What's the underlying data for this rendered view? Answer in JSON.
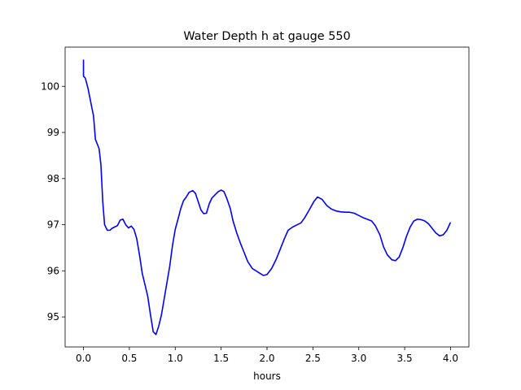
{
  "chart_data": {
    "type": "line",
    "title": "Water Depth h at gauge 550",
    "xlabel": "hours",
    "ylabel": "",
    "xlim": [
      -0.2,
      4.2
    ],
    "ylim": [
      94.35,
      100.85
    ],
    "xticks": [
      0.0,
      0.5,
      1.0,
      1.5,
      2.0,
      2.5,
      3.0,
      3.5,
      4.0
    ],
    "xtick_labels": [
      "0.0",
      "0.5",
      "1.0",
      "1.5",
      "2.0",
      "2.5",
      "3.0",
      "3.5",
      "4.0"
    ],
    "yticks": [
      95,
      96,
      97,
      98,
      99,
      100
    ],
    "ytick_labels": [
      "95",
      "96",
      "97",
      "98",
      "99",
      "100"
    ],
    "grid": false,
    "series": [
      {
        "color": "#0000ff",
        "x": [
          0.0,
          0.0,
          0.02,
          0.05,
          0.08,
          0.11,
          0.13,
          0.17,
          0.19,
          0.21,
          0.23,
          0.26,
          0.29,
          0.31,
          0.34,
          0.37,
          0.4,
          0.43,
          0.46,
          0.49,
          0.52,
          0.55,
          0.58,
          0.61,
          0.64,
          0.67,
          0.7,
          0.73,
          0.76,
          0.79,
          0.82,
          0.85,
          0.88,
          0.91,
          0.94,
          0.97,
          1.0,
          1.03,
          1.06,
          1.09,
          1.12,
          1.15,
          1.19,
          1.22,
          1.25,
          1.28,
          1.31,
          1.34,
          1.37,
          1.4,
          1.43,
          1.47,
          1.5,
          1.53,
          1.56,
          1.6,
          1.63,
          1.67,
          1.71,
          1.75,
          1.79,
          1.84,
          1.88,
          1.92,
          1.96,
          2.0,
          2.05,
          2.1,
          2.14,
          2.19,
          2.23,
          2.28,
          2.33,
          2.37,
          2.41,
          2.46,
          2.51,
          2.55,
          2.6,
          2.65,
          2.7,
          2.75,
          2.8,
          2.85,
          2.9,
          2.95,
          3.0,
          3.05,
          3.09,
          3.14,
          3.18,
          3.23,
          3.27,
          3.31,
          3.36,
          3.4,
          3.44,
          3.48,
          3.52,
          3.56,
          3.6,
          3.64,
          3.68,
          3.72,
          3.76,
          3.8,
          3.84,
          3.88,
          3.92,
          3.96,
          4.0
        ],
        "y": [
          100.58,
          100.22,
          100.18,
          99.95,
          99.65,
          99.35,
          98.85,
          98.65,
          98.3,
          97.5,
          97.0,
          96.88,
          96.88,
          96.92,
          96.95,
          96.98,
          97.1,
          97.12,
          97.0,
          96.93,
          96.97,
          96.9,
          96.7,
          96.35,
          95.95,
          95.7,
          95.45,
          95.05,
          94.68,
          94.62,
          94.8,
          95.05,
          95.4,
          95.75,
          96.1,
          96.55,
          96.9,
          97.12,
          97.35,
          97.52,
          97.6,
          97.7,
          97.74,
          97.68,
          97.5,
          97.32,
          97.24,
          97.25,
          97.45,
          97.58,
          97.64,
          97.72,
          97.75,
          97.72,
          97.58,
          97.35,
          97.08,
          96.82,
          96.6,
          96.4,
          96.2,
          96.05,
          96.0,
          95.95,
          95.9,
          95.92,
          96.05,
          96.25,
          96.45,
          96.7,
          96.88,
          96.95,
          97.0,
          97.04,
          97.15,
          97.32,
          97.5,
          97.6,
          97.55,
          97.42,
          97.34,
          97.3,
          97.28,
          97.27,
          97.27,
          97.25,
          97.2,
          97.15,
          97.12,
          97.08,
          96.98,
          96.78,
          96.52,
          96.35,
          96.24,
          96.22,
          96.3,
          96.5,
          96.75,
          96.95,
          97.08,
          97.12,
          97.11,
          97.08,
          97.02,
          96.92,
          96.82,
          96.76,
          96.78,
          96.88,
          97.05
        ]
      }
    ]
  }
}
